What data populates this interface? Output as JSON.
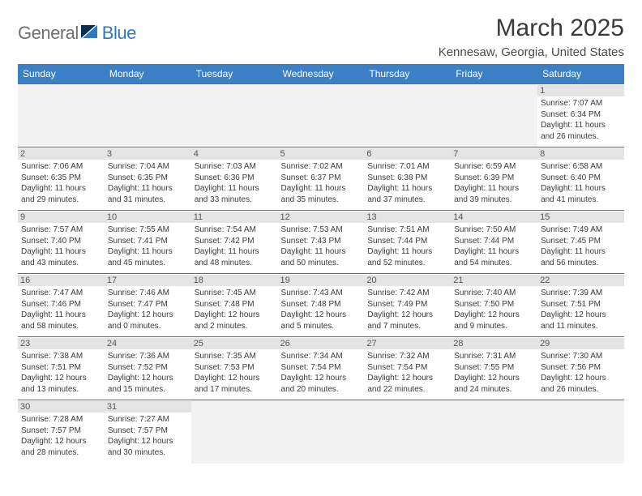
{
  "logo": {
    "part1": "General",
    "part2": "Blue"
  },
  "title": "March 2025",
  "location": "Kennesaw, Georgia, United States",
  "colors": {
    "header_bg": "#3b7fc4",
    "header_text": "#ffffff",
    "border": "#2f7abf",
    "daynum_bg": "#e4e4e4",
    "blank_bg": "#f2f2f2",
    "logo_gray": "#6f6f6f",
    "logo_blue": "#2f7abf"
  },
  "weekdays": [
    "Sunday",
    "Monday",
    "Tuesday",
    "Wednesday",
    "Thursday",
    "Friday",
    "Saturday"
  ],
  "weeks": [
    [
      null,
      null,
      null,
      null,
      null,
      null,
      {
        "n": "1",
        "sunrise": "7:07 AM",
        "sunset": "6:34 PM",
        "dl": "11 hours and 26 minutes."
      }
    ],
    [
      {
        "n": "2",
        "sunrise": "7:06 AM",
        "sunset": "6:35 PM",
        "dl": "11 hours and 29 minutes."
      },
      {
        "n": "3",
        "sunrise": "7:04 AM",
        "sunset": "6:35 PM",
        "dl": "11 hours and 31 minutes."
      },
      {
        "n": "4",
        "sunrise": "7:03 AM",
        "sunset": "6:36 PM",
        "dl": "11 hours and 33 minutes."
      },
      {
        "n": "5",
        "sunrise": "7:02 AM",
        "sunset": "6:37 PM",
        "dl": "11 hours and 35 minutes."
      },
      {
        "n": "6",
        "sunrise": "7:01 AM",
        "sunset": "6:38 PM",
        "dl": "11 hours and 37 minutes."
      },
      {
        "n": "7",
        "sunrise": "6:59 AM",
        "sunset": "6:39 PM",
        "dl": "11 hours and 39 minutes."
      },
      {
        "n": "8",
        "sunrise": "6:58 AM",
        "sunset": "6:40 PM",
        "dl": "11 hours and 41 minutes."
      }
    ],
    [
      {
        "n": "9",
        "sunrise": "7:57 AM",
        "sunset": "7:40 PM",
        "dl": "11 hours and 43 minutes."
      },
      {
        "n": "10",
        "sunrise": "7:55 AM",
        "sunset": "7:41 PM",
        "dl": "11 hours and 45 minutes."
      },
      {
        "n": "11",
        "sunrise": "7:54 AM",
        "sunset": "7:42 PM",
        "dl": "11 hours and 48 minutes."
      },
      {
        "n": "12",
        "sunrise": "7:53 AM",
        "sunset": "7:43 PM",
        "dl": "11 hours and 50 minutes."
      },
      {
        "n": "13",
        "sunrise": "7:51 AM",
        "sunset": "7:44 PM",
        "dl": "11 hours and 52 minutes."
      },
      {
        "n": "14",
        "sunrise": "7:50 AM",
        "sunset": "7:44 PM",
        "dl": "11 hours and 54 minutes."
      },
      {
        "n": "15",
        "sunrise": "7:49 AM",
        "sunset": "7:45 PM",
        "dl": "11 hours and 56 minutes."
      }
    ],
    [
      {
        "n": "16",
        "sunrise": "7:47 AM",
        "sunset": "7:46 PM",
        "dl": "11 hours and 58 minutes."
      },
      {
        "n": "17",
        "sunrise": "7:46 AM",
        "sunset": "7:47 PM",
        "dl": "12 hours and 0 minutes."
      },
      {
        "n": "18",
        "sunrise": "7:45 AM",
        "sunset": "7:48 PM",
        "dl": "12 hours and 2 minutes."
      },
      {
        "n": "19",
        "sunrise": "7:43 AM",
        "sunset": "7:48 PM",
        "dl": "12 hours and 5 minutes."
      },
      {
        "n": "20",
        "sunrise": "7:42 AM",
        "sunset": "7:49 PM",
        "dl": "12 hours and 7 minutes."
      },
      {
        "n": "21",
        "sunrise": "7:40 AM",
        "sunset": "7:50 PM",
        "dl": "12 hours and 9 minutes."
      },
      {
        "n": "22",
        "sunrise": "7:39 AM",
        "sunset": "7:51 PM",
        "dl": "12 hours and 11 minutes."
      }
    ],
    [
      {
        "n": "23",
        "sunrise": "7:38 AM",
        "sunset": "7:51 PM",
        "dl": "12 hours and 13 minutes."
      },
      {
        "n": "24",
        "sunrise": "7:36 AM",
        "sunset": "7:52 PM",
        "dl": "12 hours and 15 minutes."
      },
      {
        "n": "25",
        "sunrise": "7:35 AM",
        "sunset": "7:53 PM",
        "dl": "12 hours and 17 minutes."
      },
      {
        "n": "26",
        "sunrise": "7:34 AM",
        "sunset": "7:54 PM",
        "dl": "12 hours and 20 minutes."
      },
      {
        "n": "27",
        "sunrise": "7:32 AM",
        "sunset": "7:54 PM",
        "dl": "12 hours and 22 minutes."
      },
      {
        "n": "28",
        "sunrise": "7:31 AM",
        "sunset": "7:55 PM",
        "dl": "12 hours and 24 minutes."
      },
      {
        "n": "29",
        "sunrise": "7:30 AM",
        "sunset": "7:56 PM",
        "dl": "12 hours and 26 minutes."
      }
    ],
    [
      {
        "n": "30",
        "sunrise": "7:28 AM",
        "sunset": "7:57 PM",
        "dl": "12 hours and 28 minutes."
      },
      {
        "n": "31",
        "sunrise": "7:27 AM",
        "sunset": "7:57 PM",
        "dl": "12 hours and 30 minutes."
      },
      null,
      null,
      null,
      null,
      null
    ]
  ],
  "labels": {
    "sunrise": "Sunrise:",
    "sunset": "Sunset:",
    "daylight": "Daylight:"
  }
}
